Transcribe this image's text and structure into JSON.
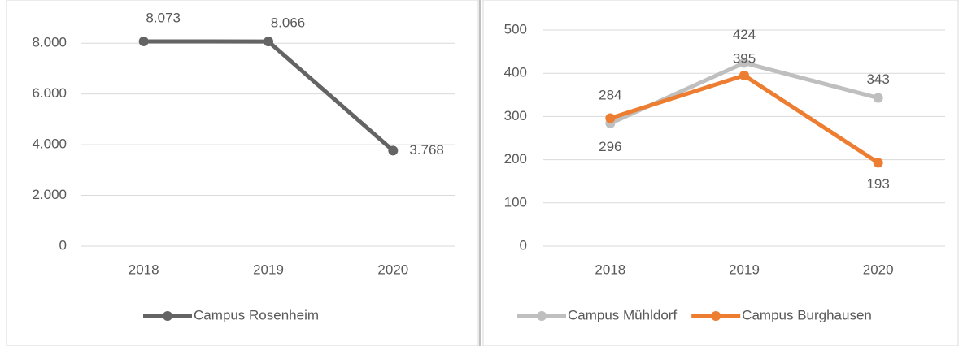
{
  "chart_data": [
    {
      "type": "line",
      "categories": [
        "2018",
        "2019",
        "2020"
      ],
      "series": [
        {
          "name": "Campus Rosenheim",
          "color": "#646464",
          "values": [
            8073,
            8066,
            3768
          ],
          "value_labels": [
            "8.073",
            "8.066",
            "3.768"
          ]
        }
      ],
      "ylim": [
        0,
        9000
      ],
      "yticks": [
        {
          "value": 0,
          "label": "0"
        },
        {
          "value": 2000,
          "label": "2.000"
        },
        {
          "value": 4000,
          "label": "4.000"
        },
        {
          "value": 6000,
          "label": "6.000"
        },
        {
          "value": 8000,
          "label": "8.000"
        }
      ],
      "grid": true,
      "legend": "bottom"
    },
    {
      "type": "line",
      "categories": [
        "2018",
        "2019",
        "2020"
      ],
      "series": [
        {
          "name": "Campus Mühldorf",
          "color": "#bfbfbf",
          "values": [
            284,
            424,
            343
          ]
        },
        {
          "name": "Campus Burghausen",
          "color": "#ed7d31",
          "values": [
            296,
            395,
            193
          ]
        }
      ],
      "ylim": [
        0,
        500
      ],
      "yticks": [
        0,
        100,
        200,
        300,
        400,
        500
      ],
      "grid": true,
      "legend": "bottom"
    }
  ]
}
